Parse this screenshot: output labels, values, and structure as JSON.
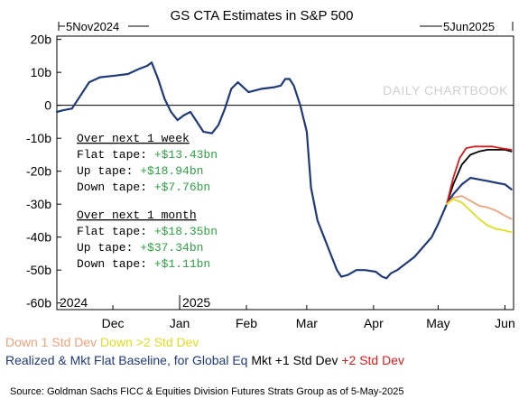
{
  "chart_data": {
    "type": "line",
    "title": "GS CTA Estimates in S&P 500",
    "range_start_label": "5Nov2024",
    "range_end_label": "5Jun2025",
    "watermark": "DAILY CHARTBOOK",
    "y_ticks": [
      "20b",
      "10b",
      "0",
      "-10b",
      "-20b",
      "-30b",
      "-40b",
      "-50b",
      "-60b"
    ],
    "ylim": [
      -62,
      21
    ],
    "x_domain": [
      "2024-11-05",
      "2025-06-05"
    ],
    "x_ticks": [
      {
        "date": "2024-12-01",
        "label": "Dec"
      },
      {
        "date": "2025-01-01",
        "label": "Jan"
      },
      {
        "date": "2025-02-01",
        "label": "Feb"
      },
      {
        "date": "2025-03-01",
        "label": "Mar"
      },
      {
        "date": "2025-04-01",
        "label": "Apr"
      },
      {
        "date": "2025-05-01",
        "label": "May"
      },
      {
        "date": "2025-06-01",
        "label": "Jun"
      }
    ],
    "year_labels": [
      {
        "date": "2024-11-05",
        "label": "2024"
      },
      {
        "date": "2025-01-01",
        "label": "2025"
      }
    ],
    "series": [
      {
        "name": "Realized & Mkt Flat Baseline, for Global Eq",
        "color": "#1f3a7a",
        "points": [
          [
            "2024-11-05",
            -2
          ],
          [
            "2024-11-08",
            -1.5
          ],
          [
            "2024-11-12",
            -1
          ],
          [
            "2024-11-16",
            3
          ],
          [
            "2024-11-20",
            7
          ],
          [
            "2024-11-25",
            8.5
          ],
          [
            "2024-12-02",
            9
          ],
          [
            "2024-12-08",
            9.5
          ],
          [
            "2024-12-13",
            11
          ],
          [
            "2024-12-17",
            12
          ],
          [
            "2024-12-19",
            13
          ],
          [
            "2024-12-22",
            8
          ],
          [
            "2024-12-25",
            2
          ],
          [
            "2024-12-28",
            -2
          ],
          [
            "2024-12-31",
            -4.5
          ],
          [
            "2025-01-03",
            -3
          ],
          [
            "2025-01-06",
            -2
          ],
          [
            "2025-01-09",
            -5
          ],
          [
            "2025-01-12",
            -8
          ],
          [
            "2025-01-16",
            -8.5
          ],
          [
            "2025-01-19",
            -6
          ],
          [
            "2025-01-22",
            -1
          ],
          [
            "2025-01-25",
            5
          ],
          [
            "2025-01-28",
            7
          ],
          [
            "2025-02-02",
            4
          ],
          [
            "2025-02-08",
            5
          ],
          [
            "2025-02-14",
            5.5
          ],
          [
            "2025-02-17",
            6
          ],
          [
            "2025-02-19",
            8
          ],
          [
            "2025-02-21",
            8
          ],
          [
            "2025-02-23",
            6
          ],
          [
            "2025-02-26",
            0
          ],
          [
            "2025-03-01",
            -8
          ],
          [
            "2025-03-03",
            -25
          ],
          [
            "2025-03-06",
            -35
          ],
          [
            "2025-03-09",
            -40
          ],
          [
            "2025-03-12",
            -45
          ],
          [
            "2025-03-15",
            -50
          ],
          [
            "2025-03-17",
            -52
          ],
          [
            "2025-03-20",
            -51.5
          ],
          [
            "2025-03-24",
            -50
          ],
          [
            "2025-03-28",
            -50
          ],
          [
            "2025-04-02",
            -50.5
          ],
          [
            "2025-04-05",
            -52
          ],
          [
            "2025-04-07",
            -52.5
          ],
          [
            "2025-04-09",
            -51
          ],
          [
            "2025-04-12",
            -50
          ],
          [
            "2025-04-16",
            -48
          ],
          [
            "2025-04-20",
            -46
          ],
          [
            "2025-04-24",
            -43
          ],
          [
            "2025-04-28",
            -40
          ],
          [
            "2025-05-01",
            -36
          ],
          [
            "2025-05-05",
            -30
          ],
          [
            "2025-05-08",
            -27
          ],
          [
            "2025-05-12",
            -24
          ],
          [
            "2025-05-16",
            -22
          ],
          [
            "2025-05-20",
            -22.5
          ],
          [
            "2025-05-24",
            -23
          ],
          [
            "2025-05-28",
            -23.5
          ],
          [
            "2025-06-01",
            -24
          ],
          [
            "2025-06-04",
            -25.5
          ]
        ]
      },
      {
        "name": "Mkt +1 Std Dev",
        "color": "#000000",
        "points": [
          [
            "2025-05-05",
            -30
          ],
          [
            "2025-05-08",
            -24
          ],
          [
            "2025-05-12",
            -18
          ],
          [
            "2025-05-16",
            -15
          ],
          [
            "2025-05-20",
            -14
          ],
          [
            "2025-05-24",
            -13.5
          ],
          [
            "2025-05-28",
            -13.5
          ],
          [
            "2025-06-01",
            -13.5
          ],
          [
            "2025-06-04",
            -14
          ]
        ]
      },
      {
        "name": "+2 Std Dev",
        "color": "#e01a1a",
        "points": [
          [
            "2025-05-05",
            -30
          ],
          [
            "2025-05-08",
            -22
          ],
          [
            "2025-05-11",
            -16
          ],
          [
            "2025-05-14",
            -13
          ],
          [
            "2025-05-18",
            -12.5
          ],
          [
            "2025-05-22",
            -12.5
          ],
          [
            "2025-05-26",
            -12.5
          ],
          [
            "2025-05-30",
            -13
          ],
          [
            "2025-06-04",
            -13.5
          ]
        ]
      },
      {
        "name": "Down 1 Std Dev",
        "color": "#f2a07a",
        "points": [
          [
            "2025-05-05",
            -30
          ],
          [
            "2025-05-08",
            -28
          ],
          [
            "2025-05-12",
            -27.5
          ],
          [
            "2025-05-16",
            -29
          ],
          [
            "2025-05-20",
            -30.5
          ],
          [
            "2025-05-24",
            -31
          ],
          [
            "2025-05-28",
            -32
          ],
          [
            "2025-06-01",
            -33.5
          ],
          [
            "2025-06-04",
            -34.5
          ]
        ]
      },
      {
        "name": "Down >2 Std Dev",
        "color": "#dede1e",
        "points": [
          [
            "2025-05-05",
            -30
          ],
          [
            "2025-05-08",
            -28.5
          ],
          [
            "2025-05-12",
            -29.5
          ],
          [
            "2025-05-16",
            -32
          ],
          [
            "2025-05-20",
            -34.5
          ],
          [
            "2025-05-24",
            -36.5
          ],
          [
            "2025-05-28",
            -37.5
          ],
          [
            "2025-06-01",
            -38
          ],
          [
            "2025-06-04",
            -38.5
          ]
        ]
      }
    ],
    "annotation": {
      "week_heading": "Over next 1 week",
      "week_rows": [
        {
          "label": "Flat tape: ",
          "value": "+$13.43bn"
        },
        {
          "label": "Up tape: ",
          "value": "+$18.94bn"
        },
        {
          "label": "Down tape: ",
          "value": "+$7.76bn"
        }
      ],
      "month_heading": "Over next 1 month",
      "month_rows": [
        {
          "label": "Flat tape: ",
          "value": "+$18.35bn"
        },
        {
          "label": "Up tape: ",
          "value": "+$37.34bn"
        },
        {
          "label": "Down tape: ",
          "value": "+$1.11bn"
        }
      ],
      "value_color": "#2ea043"
    },
    "legend_rows": [
      [
        {
          "text": "Down 1 Std Dev",
          "color": "#f2a07a"
        },
        {
          "text": "Down >2 Std Dev",
          "color": "#dede1e"
        }
      ],
      [
        {
          "text": "Realized & Mkt Flat Baseline, for Global Eq",
          "color": "#1f3a7a"
        },
        {
          "text": "Mkt +1 Std Dev",
          "color": "#000000"
        },
        {
          "text": "+2 Std Dev",
          "color": "#e01a1a"
        }
      ]
    ],
    "source": "Source: Goldman Sachs FICC & Equities Division Futures Strats Group as of 5-May-2025"
  }
}
